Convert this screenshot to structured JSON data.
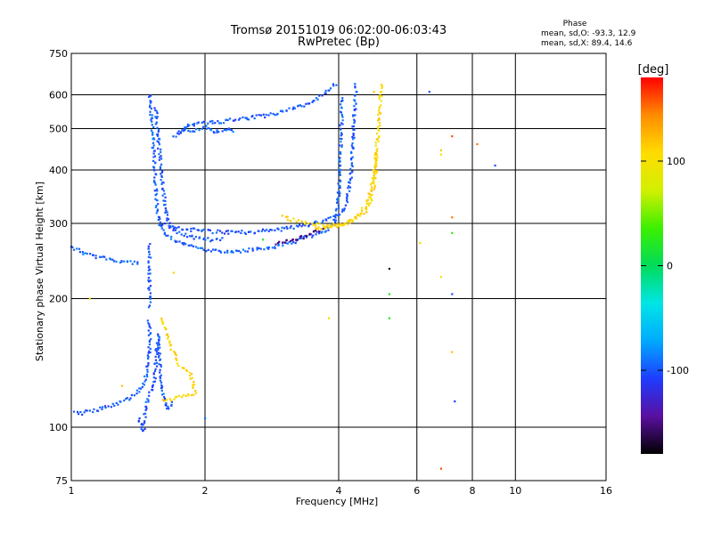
{
  "header": {
    "title_line1": "Tromsø 20151019 06:02:00-06:03:43",
    "title_line2": "RwPretec (Bp)"
  },
  "phase_info": {
    "heading": "Phase",
    "o_stats": "mean, sd,O: -93.3, 12.9",
    "x_stats": "mean, sd,X: 89.4, 14.6"
  },
  "colorbar": {
    "label": "[deg]",
    "range": [
      -180,
      180
    ],
    "ticks": [
      {
        "value": 100,
        "label": "100"
      },
      {
        "value": 0,
        "label": "0"
      },
      {
        "value": -100,
        "label": "-100"
      }
    ],
    "colors": [
      "#000000",
      "#5a0fa0",
      "#1e3cff",
      "#00aaff",
      "#00e6e6",
      "#00dc5a",
      "#3cf000",
      "#d2f000",
      "#ffdc00",
      "#ff8c00",
      "#ff0000"
    ]
  },
  "chart_data": {
    "type": "scatter",
    "xlabel": "Frequency [MHz]",
    "ylabel": "Stationary phase Virtual Height [km]",
    "xscale": "log",
    "yscale": "log",
    "xlim": [
      1,
      16
    ],
    "ylim": [
      75,
      750
    ],
    "xticks": [
      {
        "value": 1,
        "label": "1"
      },
      {
        "value": 2,
        "label": "2"
      },
      {
        "value": 4,
        "label": "4"
      },
      {
        "value": 6,
        "label": "6"
      },
      {
        "value": 8,
        "label": "8"
      },
      {
        "value": 10,
        "label": "10"
      },
      {
        "value": 16,
        "label": "16"
      }
    ],
    "yticks": [
      {
        "value": 75,
        "label": "75"
      },
      {
        "value": 100,
        "label": "100"
      },
      {
        "value": 200,
        "label": "200"
      },
      {
        "value": 300,
        "label": "300"
      },
      {
        "value": 400,
        "label": "400"
      },
      {
        "value": 500,
        "label": "500"
      },
      {
        "value": 600,
        "label": "600"
      },
      {
        "value": 750,
        "label": "750"
      }
    ],
    "grid": true,
    "color_scale": "phase in degrees",
    "traces": [
      {
        "phase": -95,
        "points": [
          [
            1.0,
            265
          ],
          [
            1.05,
            258
          ],
          [
            1.12,
            252
          ],
          [
            1.2,
            248
          ],
          [
            1.28,
            245
          ],
          [
            1.36,
            243
          ],
          [
            1.43,
            242
          ]
        ]
      },
      {
        "phase": -95,
        "points": [
          [
            1.5,
            600
          ],
          [
            1.52,
            520
          ],
          [
            1.53,
            450
          ],
          [
            1.54,
            400
          ],
          [
            1.55,
            360
          ],
          [
            1.56,
            320
          ],
          [
            1.58,
            300
          ],
          [
            1.62,
            285
          ],
          [
            1.7,
            275
          ],
          [
            1.8,
            268
          ],
          [
            1.95,
            262
          ],
          [
            2.1,
            258
          ],
          [
            2.3,
            258
          ],
          [
            2.55,
            260
          ],
          [
            2.8,
            263
          ],
          [
            3.0,
            268
          ],
          [
            3.25,
            274
          ],
          [
            3.5,
            282
          ],
          [
            3.75,
            290
          ],
          [
            3.9,
            300
          ],
          [
            3.97,
            320
          ],
          [
            4.0,
            350
          ],
          [
            4.02,
            390
          ],
          [
            4.03,
            430
          ],
          [
            4.05,
            480
          ],
          [
            4.06,
            540
          ],
          [
            4.07,
            600
          ]
        ]
      },
      {
        "phase": -100,
        "points": [
          [
            1.55,
            560
          ],
          [
            1.57,
            470
          ],
          [
            1.59,
            410
          ],
          [
            1.61,
            360
          ],
          [
            1.63,
            320
          ],
          [
            1.67,
            295
          ],
          [
            1.75,
            285
          ],
          [
            1.9,
            278
          ],
          [
            2.05,
            275
          ],
          [
            2.2,
            277
          ]
        ]
      },
      {
        "phase": -100,
        "points": [
          [
            1.58,
            300
          ],
          [
            1.7,
            295
          ],
          [
            1.85,
            290
          ],
          [
            2.0,
            288
          ],
          [
            2.2,
            286
          ],
          [
            2.5,
            286
          ],
          [
            2.9,
            290
          ],
          [
            3.3,
            296
          ],
          [
            3.7,
            304
          ],
          [
            4.0,
            312
          ],
          [
            4.15,
            330
          ],
          [
            4.22,
            360
          ],
          [
            4.27,
            400
          ],
          [
            4.3,
            450
          ],
          [
            4.33,
            520
          ],
          [
            4.36,
            600
          ],
          [
            4.38,
            640
          ]
        ]
      },
      {
        "phase": -100,
        "points": [
          [
            1.75,
            490
          ],
          [
            1.85,
            510
          ],
          [
            2.0,
            515
          ],
          [
            2.2,
            520
          ],
          [
            2.45,
            528
          ],
          [
            2.7,
            535
          ],
          [
            2.95,
            545
          ],
          [
            3.2,
            558
          ],
          [
            3.45,
            575
          ],
          [
            3.7,
            600
          ],
          [
            3.85,
            620
          ],
          [
            3.95,
            640
          ]
        ]
      },
      {
        "phase": -95,
        "points": [
          [
            1.7,
            480
          ],
          [
            1.8,
            500
          ],
          [
            1.9,
            495
          ],
          [
            2.0,
            505
          ],
          [
            2.1,
            490
          ],
          [
            2.2,
            500
          ],
          [
            2.35,
            495
          ]
        ]
      },
      {
        "phase": 110,
        "points": [
          [
            3.0,
            310
          ],
          [
            3.2,
            305
          ],
          [
            3.4,
            300
          ],
          [
            3.6,
            297
          ],
          [
            3.8,
            296
          ],
          [
            4.0,
            297
          ],
          [
            4.15,
            300
          ],
          [
            4.3,
            306
          ],
          [
            4.45,
            316
          ],
          [
            4.6,
            330
          ],
          [
            4.7,
            350
          ],
          [
            4.78,
            380
          ],
          [
            4.84,
            420
          ],
          [
            4.88,
            460
          ],
          [
            4.92,
            510
          ],
          [
            4.95,
            560
          ],
          [
            4.98,
            610
          ],
          [
            5.0,
            640
          ]
        ]
      },
      {
        "phase": 110,
        "points": [
          [
            3.5,
            290
          ],
          [
            3.8,
            295
          ],
          [
            4.1,
            300
          ],
          [
            4.4,
            310
          ],
          [
            4.6,
            320
          ],
          [
            4.75,
            345
          ],
          [
            4.82,
            375
          ],
          [
            4.86,
            410
          ],
          [
            4.9,
            450
          ]
        ]
      },
      {
        "phase": -150,
        "points": [
          [
            2.9,
            270
          ],
          [
            3.1,
            275
          ],
          [
            3.3,
            278
          ],
          [
            3.5,
            285
          ],
          [
            3.7,
            290
          ]
        ]
      },
      {
        "phase": -100,
        "points": [
          [
            1.02,
            108
          ],
          [
            1.06,
            108
          ],
          [
            1.1,
            109
          ],
          [
            1.15,
            110
          ],
          [
            1.2,
            112
          ],
          [
            1.25,
            113
          ],
          [
            1.3,
            115
          ],
          [
            1.35,
            117
          ],
          [
            1.4,
            120
          ],
          [
            1.45,
            125
          ],
          [
            1.48,
            135
          ],
          [
            1.5,
            150
          ],
          [
            1.5,
            170
          ],
          [
            1.49,
            180
          ]
        ]
      },
      {
        "phase": -100,
        "points": [
          [
            1.42,
            105
          ],
          [
            1.44,
            100
          ],
          [
            1.45,
            98
          ],
          [
            1.46,
            103
          ],
          [
            1.47,
            110
          ],
          [
            1.5,
            120
          ],
          [
            1.53,
            125
          ],
          [
            1.55,
            140
          ],
          [
            1.56,
            155
          ],
          [
            1.57,
            165
          ],
          [
            1.6,
            120
          ],
          [
            1.65,
            110
          ],
          [
            1.7,
            115
          ]
        ]
      },
      {
        "phase": -100,
        "points": [
          [
            1.5,
            270
          ],
          [
            1.5,
            250
          ],
          [
            1.5,
            240
          ],
          [
            1.5,
            220
          ],
          [
            1.5,
            200
          ],
          [
            1.5,
            190
          ]
        ]
      },
      {
        "phase": 110,
        "points": [
          [
            1.6,
            180
          ],
          [
            1.65,
            160
          ],
          [
            1.75,
            140
          ],
          [
            1.85,
            135
          ],
          [
            1.9,
            120
          ],
          [
            1.6,
            115
          ]
        ]
      }
    ],
    "isolated_points": [
      {
        "x": 6.4,
        "y": 610,
        "phase": -100
      },
      {
        "x": 6.8,
        "y": 445,
        "phase": 120
      },
      {
        "x": 6.8,
        "y": 435,
        "phase": 100
      },
      {
        "x": 7.2,
        "y": 480,
        "phase": 160
      },
      {
        "x": 8.2,
        "y": 460,
        "phase": 150
      },
      {
        "x": 9.0,
        "y": 410,
        "phase": -100
      },
      {
        "x": 7.2,
        "y": 310,
        "phase": 150
      },
      {
        "x": 7.2,
        "y": 285,
        "phase": 30
      },
      {
        "x": 6.1,
        "y": 270,
        "phase": 110
      },
      {
        "x": 5.2,
        "y": 235,
        "phase": -170
      },
      {
        "x": 6.8,
        "y": 225,
        "phase": 110
      },
      {
        "x": 5.2,
        "y": 205,
        "phase": 20
      },
      {
        "x": 7.2,
        "y": 205,
        "phase": -100
      },
      {
        "x": 5.2,
        "y": 180,
        "phase": 20
      },
      {
        "x": 7.2,
        "y": 150,
        "phase": 120
      },
      {
        "x": 7.3,
        "y": 115,
        "phase": -110
      },
      {
        "x": 6.8,
        "y": 80,
        "phase": 160
      },
      {
        "x": 3.8,
        "y": 180,
        "phase": 110
      },
      {
        "x": 4.8,
        "y": 610,
        "phase": 120
      },
      {
        "x": 1.3,
        "y": 125,
        "phase": 120
      },
      {
        "x": 1.1,
        "y": 200,
        "phase": 110
      },
      {
        "x": 2.0,
        "y": 105,
        "phase": -90
      },
      {
        "x": 1.7,
        "y": 230,
        "phase": 110
      },
      {
        "x": 2.7,
        "y": 275,
        "phase": 20
      }
    ]
  }
}
